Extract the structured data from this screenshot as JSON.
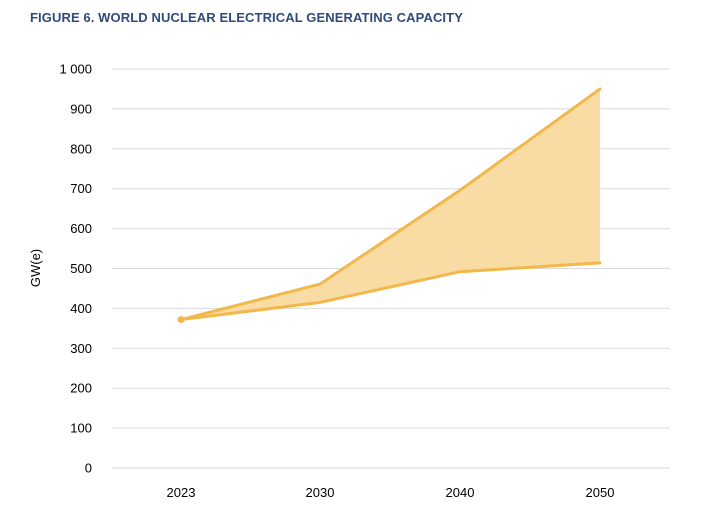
{
  "chart_data": {
    "type": "area",
    "title": "FIGURE 6. WORLD NUCLEAR ELECTRICAL GENERATING CAPACITY",
    "xlabel": "",
    "ylabel": "GW(e)",
    "categories": [
      "2023",
      "2030",
      "2040",
      "2050"
    ],
    "series": [
      {
        "values": [
          372,
          461,
          696,
          950
        ]
      },
      {
        "values": [
          372,
          415,
          492,
          514
        ]
      }
    ],
    "ylim": [
      0,
      1000
    ],
    "yticks": [
      0,
      100,
      200,
      300,
      400,
      500,
      600,
      700,
      800,
      900,
      1000
    ],
    "ytick_labels": [
      "0",
      "100",
      "200",
      "300",
      "400",
      "500",
      "600",
      "700",
      "800",
      "900",
      "1 000"
    ],
    "grid": true,
    "legend": "none",
    "colors": {
      "line": "#f2b84b",
      "fill": "#f8dca4",
      "title": "#2f4b7c",
      "grid": "#d9d9d9"
    }
  }
}
